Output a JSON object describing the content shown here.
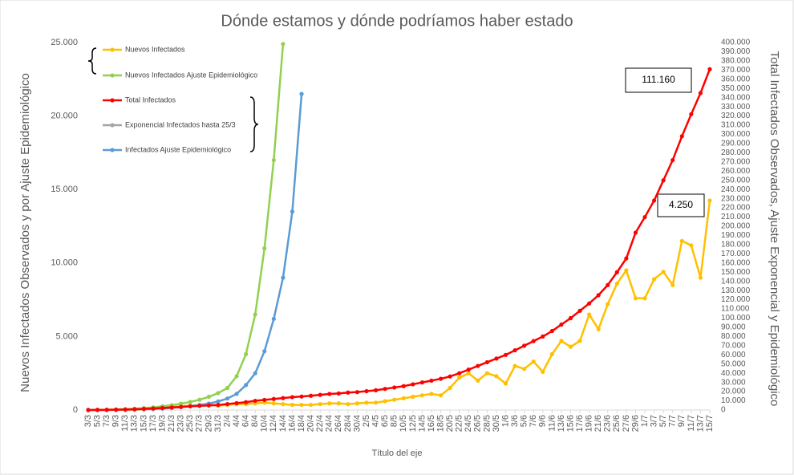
{
  "chart_data": {
    "type": "line",
    "title": "Dónde estamos y dónde podríamos haber estado",
    "x_label": "Título del eje",
    "y_label": "Nuevos Infectados Observados y por Ajuste Epidemiológico",
    "y2_label": "Total Infectados Observados, Ajuste Exponencial y Epidemiológico",
    "annotations": [
      "111.160",
      "4.250"
    ],
    "grid": false,
    "categories": [
      "3/3",
      "5/3",
      "7/3",
      "9/3",
      "11/3",
      "13/3",
      "15/3",
      "17/3",
      "19/3",
      "21/3",
      "23/3",
      "25/3",
      "27/3",
      "29/3",
      "31/3",
      "2/4",
      "4/4",
      "6/4",
      "8/4",
      "10/4",
      "12/4",
      "14/4",
      "16/4",
      "18/4",
      "20/4",
      "22/4",
      "24/4",
      "26/4",
      "28/4",
      "30/4",
      "2/5",
      "4/5",
      "6/5",
      "8/5",
      "10/5",
      "12/5",
      "14/5",
      "16/5",
      "18/5",
      "20/5",
      "22/5",
      "24/5",
      "26/5",
      "28/5",
      "30/5",
      "1/6",
      "3/6",
      "5/6",
      "7/6",
      "9/6",
      "11/6",
      "13/6",
      "15/6",
      "17/6",
      "19/6",
      "21/6",
      "23/6",
      "25/6",
      "27/6",
      "29/6",
      "1/7",
      "3/7",
      "5/7",
      "7/7",
      "9/7",
      "11/7",
      "13/7",
      "15/7"
    ],
    "ylim": [
      0,
      25000
    ],
    "yticks": [
      0,
      {
        "value": 5000,
        "label": "5.000"
      },
      {
        "value": 10000,
        "label": "10.000"
      },
      {
        "value": 15000,
        "label": "15.000"
      },
      {
        "value": 20000,
        "label": "20.000"
      },
      {
        "value": 25000,
        "label": "25.000"
      }
    ],
    "y2lim": [
      0,
      400000
    ],
    "y2ticks": [
      0,
      {
        "value": 10000,
        "label": "10.000"
      },
      {
        "value": 20000,
        "label": "20.000"
      },
      {
        "value": 30000,
        "label": "30.000"
      },
      {
        "value": 40000,
        "label": "40.000"
      },
      {
        "value": 50000,
        "label": "50.000"
      },
      {
        "value": 60000,
        "label": "60.000"
      },
      {
        "value": 70000,
        "label": "70.000"
      },
      {
        "value": 80000,
        "label": "80.000"
      },
      {
        "value": 90000,
        "label": "90.000"
      },
      {
        "value": 100000,
        "label": "100.000"
      },
      {
        "value": 110000,
        "label": "110.000"
      },
      {
        "value": 120000,
        "label": "120.000"
      },
      {
        "value": 130000,
        "label": "130.000"
      },
      {
        "value": 140000,
        "label": "140.000"
      },
      {
        "value": 150000,
        "label": "150.000"
      },
      {
        "value": 160000,
        "label": "160.000"
      },
      {
        "value": 170000,
        "label": "170.000"
      },
      {
        "value": 180000,
        "label": "180.000"
      },
      {
        "value": 190000,
        "label": "190.000"
      },
      {
        "value": 200000,
        "label": "200.000"
      },
      {
        "value": 210000,
        "label": "210.000"
      },
      {
        "value": 220000,
        "label": "220.000"
      },
      {
        "value": 230000,
        "label": "230.000"
      },
      {
        "value": 240000,
        "label": "240.000"
      },
      {
        "value": 250000,
        "label": "250.000"
      },
      {
        "value": 260000,
        "label": "260.000"
      },
      {
        "value": 270000,
        "label": "270.000"
      },
      {
        "value": 280000,
        "label": "280.000"
      },
      {
        "value": 290000,
        "label": "290.000"
      },
      {
        "value": 300000,
        "label": "300.000"
      },
      {
        "value": 310000,
        "label": "310.000"
      },
      {
        "value": 320000,
        "label": "320.000"
      },
      {
        "value": 330000,
        "label": "330.000"
      },
      {
        "value": 340000,
        "label": "340.000"
      },
      {
        "value": 350000,
        "label": "350.000"
      },
      {
        "value": 360000,
        "label": "360.000"
      },
      {
        "value": 370000,
        "label": "370.000"
      },
      {
        "value": 380000,
        "label": "380.000"
      },
      {
        "value": 390000,
        "label": "390.000"
      },
      {
        "value": 400000,
        "label": "400.000"
      }
    ],
    "series": [
      {
        "name": "Nuevos Infectados",
        "color": "#ffc000",
        "values": [
          0,
          5,
          10,
          15,
          20,
          30,
          50,
          100,
          150,
          200,
          250,
          300,
          300,
          350,
          300,
          350,
          400,
          400,
          450,
          500,
          450,
          400,
          350,
          350,
          350,
          400,
          450,
          450,
          400,
          450,
          500,
          500,
          600,
          700,
          800,
          900,
          1000,
          1100,
          1000,
          1500,
          2200,
          2500,
          2000,
          2500,
          2300,
          1800,
          3000,
          2800,
          3300,
          2600,
          3800,
          4700,
          4300,
          4700,
          6500,
          5500,
          7200,
          8600,
          9500,
          7600,
          7600,
          8900,
          9400,
          8500,
          11500,
          11200,
          9000,
          14250
        ]
      },
      {
        "name": "Nuevos Infectados Ajuste Epidemiológico",
        "color": "#92d050",
        "values": [
          0,
          10,
          20,
          40,
          60,
          90,
          130,
          180,
          250,
          330,
          430,
          550,
          700,
          900,
          1150,
          1500,
          2300,
          3800,
          6500,
          11000,
          17000,
          24900,
          null,
          null,
          null,
          null,
          null,
          null,
          null,
          null,
          null,
          null,
          null,
          null,
          null,
          null,
          null,
          null,
          null,
          null,
          null,
          null,
          null,
          null,
          null,
          null,
          null,
          null,
          null,
          null,
          null,
          null,
          null,
          null,
          null,
          null,
          null,
          null,
          null,
          null,
          null,
          null,
          null,
          null,
          null,
          null,
          null,
          null
        ]
      },
      {
        "name": "Total Infectados",
        "color": "#ff0000",
        "axis": "y2",
        "values": [
          0,
          100,
          200,
          300,
          500,
          800,
          1200,
          1700,
          2200,
          2800,
          3400,
          4000,
          4500,
          5000,
          5500,
          6500,
          7500,
          8500,
          10000,
          11000,
          12000,
          13000,
          14000,
          14700,
          15500,
          16500,
          17500,
          18000,
          19000,
          19500,
          20500,
          21500,
          23000,
          24500,
          26000,
          28000,
          30000,
          32000,
          34000,
          36500,
          40000,
          44000,
          48000,
          52000,
          56000,
          60000,
          65000,
          70000,
          75000,
          80000,
          86000,
          93000,
          100000,
          108000,
          116000,
          125000,
          136000,
          150000,
          165000,
          193000,
          210000,
          228000,
          250000,
          272000,
          298000,
          322000,
          345000,
          371000
        ]
      },
      {
        "name": "Exponencial Infectados hasta 25/3",
        "color": "#a5a5a5",
        "axis": "y2",
        "values": [
          0,
          20,
          50,
          100,
          200,
          400,
          700,
          1100,
          1600,
          2300,
          3100,
          4000,
          null,
          null,
          null,
          null,
          null,
          null,
          null,
          null,
          null,
          null,
          null,
          null,
          null,
          null,
          null,
          null,
          null,
          null,
          null,
          null,
          null,
          null,
          null,
          null,
          null,
          null,
          null,
          null,
          null,
          null,
          null,
          null,
          null,
          null,
          null,
          null,
          null,
          null,
          null,
          null,
          null,
          null,
          null,
          null,
          null,
          null,
          null,
          null,
          null,
          null,
          null,
          null,
          null,
          null,
          null,
          null
        ]
      },
      {
        "name": "Infectados Ajuste Epidemiológico",
        "color": "#5b9bd5",
        "values": [
          0,
          5,
          10,
          20,
          30,
          40,
          60,
          80,
          110,
          150,
          200,
          260,
          340,
          440,
          580,
          780,
          1100,
          1700,
          2500,
          4000,
          6200,
          9000,
          13500,
          21500,
          null,
          null,
          null,
          null,
          null,
          null,
          null,
          null,
          null,
          null,
          null,
          null,
          null,
          null,
          null,
          null,
          null,
          null,
          null,
          null,
          null,
          null,
          null,
          null,
          null,
          null,
          null,
          null,
          null,
          null,
          null,
          null,
          null,
          null,
          null,
          null,
          null,
          null,
          null,
          null,
          null,
          null,
          null,
          null
        ]
      }
    ]
  }
}
